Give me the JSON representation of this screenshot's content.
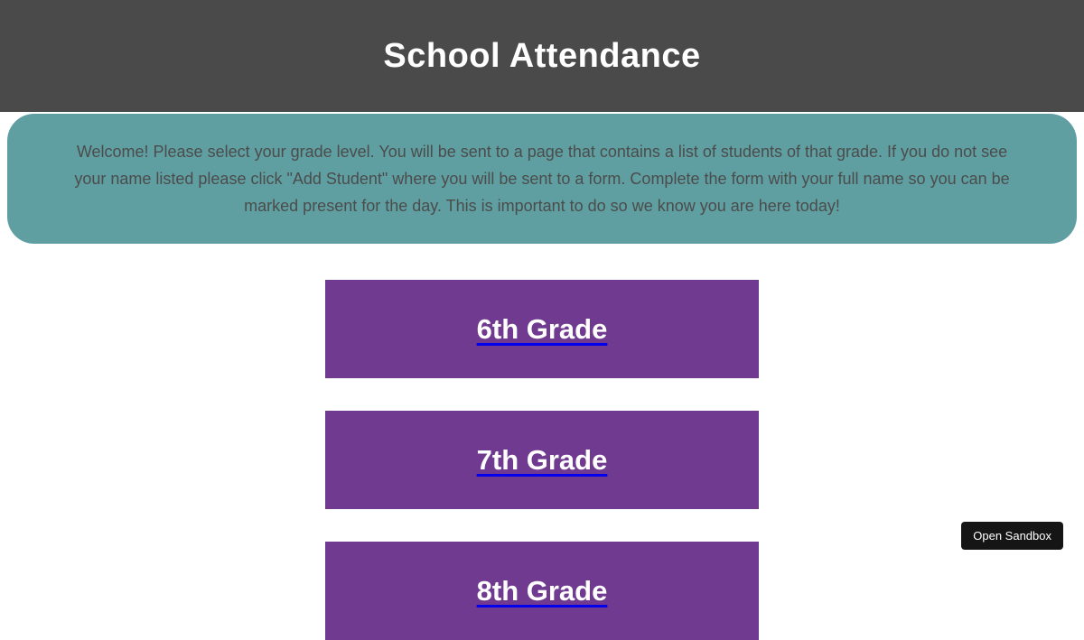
{
  "header": {
    "title": "School Attendance"
  },
  "banner": {
    "message": "Welcome! Please select your grade level. You will be sent to a page that contains a list of students of that grade. If you do not see your name listed please click \"Add Student\" where you will be sent to a form. Complete the form with your full name so you can be marked present for the day. This is important to do so we know you are here today!"
  },
  "grades": [
    {
      "label": "6th Grade"
    },
    {
      "label": "7th Grade"
    },
    {
      "label": "8th Grade"
    }
  ],
  "sandbox_button": {
    "label": "Open Sandbox"
  },
  "colors": {
    "header_bg": "#4a4a4a",
    "banner_bg": "#5f9fa1",
    "banner_text": "#4c4c4c",
    "grade_block_bg": "#6f3a8f",
    "grade_label_text": "#ffffff",
    "link_underline": "#0000ee",
    "sandbox_button_bg": "#151515"
  }
}
